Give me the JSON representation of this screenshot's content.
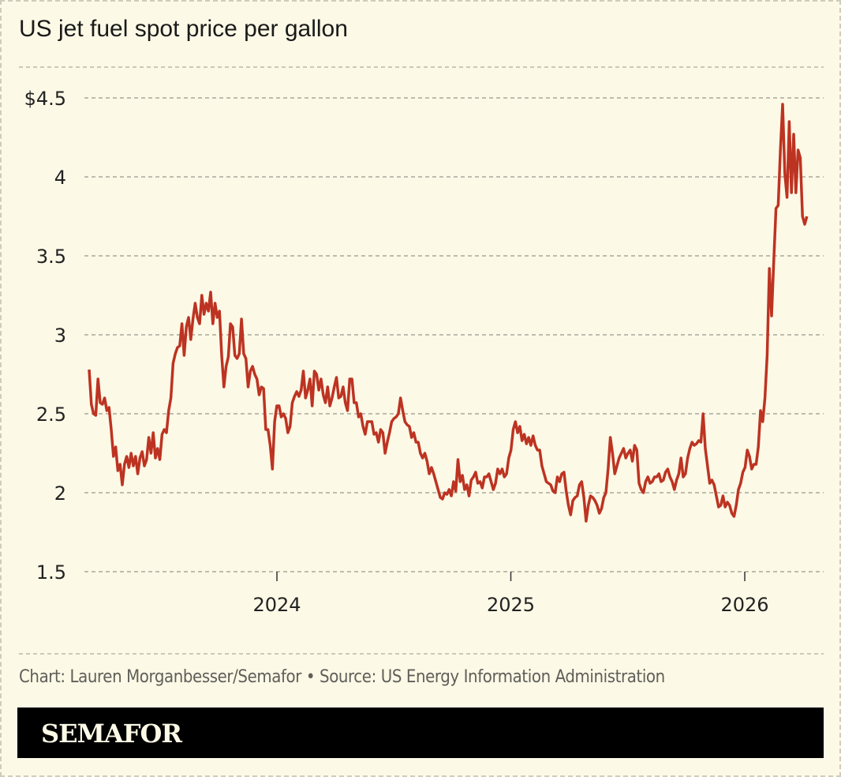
{
  "title": "US jet fuel spot price per gallon",
  "credit": "Chart: Lauren Morganbesser/Semafor • Source: US Energy Information Administration",
  "brand": "SEMAFOR",
  "colors": {
    "line": "#bd3322",
    "background": "#fcf9e6",
    "grid": "#aaa79c",
    "brand_bar": "#000000"
  },
  "chart_data": {
    "type": "line",
    "title": "US jet fuel spot price per gallon",
    "xlabel": "",
    "ylabel": "",
    "ylim": [
      1.5,
      4.5
    ],
    "y_ticks": [
      {
        "value": 4.5,
        "label": "$4.5"
      },
      {
        "value": 4,
        "label": "4"
      },
      {
        "value": 3.5,
        "label": "3.5"
      },
      {
        "value": 3,
        "label": "3"
      },
      {
        "value": 2.5,
        "label": "2.5"
      },
      {
        "value": 2,
        "label": "2"
      },
      {
        "value": 1.5,
        "label": "1.5"
      }
    ],
    "x_ticks": [
      {
        "value": "2024-01-01",
        "label": "2024"
      },
      {
        "value": "2025-01-01",
        "label": "2025"
      },
      {
        "value": "2026-01-01",
        "label": "2026"
      }
    ],
    "grid": "horizontal dashed",
    "legend": "none",
    "series": [
      {
        "start_date": "2023-03-14",
        "end_date": "2026-04-08",
        "values": [
          2.78,
          2.56,
          2.5,
          2.49,
          2.72,
          2.57,
          2.56,
          2.6,
          2.52,
          2.54,
          2.4,
          2.23,
          2.29,
          2.14,
          2.18,
          2.05,
          2.18,
          2.23,
          2.16,
          2.25,
          2.17,
          2.23,
          2.12,
          2.22,
          2.26,
          2.17,
          2.21,
          2.35,
          2.25,
          2.38,
          2.22,
          2.28,
          2.21,
          2.37,
          2.4,
          2.38,
          2.52,
          2.6,
          2.82,
          2.88,
          2.92,
          2.93,
          3.07,
          2.87,
          3.05,
          3.11,
          2.97,
          3.1,
          3.2,
          3.11,
          3.07,
          3.25,
          3.13,
          3.2,
          3.15,
          3.27,
          3.07,
          3.2,
          3.11,
          3.15,
          2.87,
          2.67,
          2.8,
          2.86,
          3.07,
          3.05,
          2.87,
          2.85,
          2.88,
          3.1,
          2.88,
          2.85,
          2.67,
          2.77,
          2.8,
          2.75,
          2.72,
          2.62,
          2.67,
          2.66,
          2.4,
          2.4,
          2.3,
          2.15,
          2.45,
          2.55,
          2.55,
          2.48,
          2.5,
          2.47,
          2.38,
          2.42,
          2.57,
          2.61,
          2.64,
          2.61,
          2.65,
          2.77,
          2.6,
          2.65,
          2.72,
          2.55,
          2.77,
          2.75,
          2.65,
          2.72,
          2.62,
          2.57,
          2.67,
          2.55,
          2.6,
          2.67,
          2.73,
          2.6,
          2.61,
          2.67,
          2.57,
          2.52,
          2.72,
          2.72,
          2.57,
          2.57,
          2.48,
          2.5,
          2.42,
          2.37,
          2.45,
          2.45,
          2.45,
          2.37,
          2.38,
          2.32,
          2.4,
          2.38,
          2.25,
          2.32,
          2.38,
          2.45,
          2.47,
          2.48,
          2.5,
          2.6,
          2.52,
          2.45,
          2.43,
          2.42,
          2.35,
          2.38,
          2.32,
          2.32,
          2.25,
          2.22,
          2.25,
          2.2,
          2.12,
          2.16,
          2.12,
          2.07,
          2.02,
          1.97,
          1.96,
          2.0,
          1.99,
          2.02,
          1.98,
          2.07,
          2.01,
          2.21,
          2.07,
          2.11,
          2.02,
          2.05,
          1.98,
          2.08,
          2.1,
          2.13,
          2.06,
          2.07,
          2.03,
          2.1,
          2.1,
          2.12,
          2.07,
          2.02,
          2.06,
          2.15,
          2.12,
          2.15,
          2.1,
          2.12,
          2.22,
          2.27,
          2.4,
          2.45,
          2.38,
          2.42,
          2.33,
          2.37,
          2.31,
          2.35,
          2.3,
          2.36,
          2.3,
          2.27,
          2.27,
          2.17,
          2.12,
          2.07,
          2.06,
          2.05,
          2.01,
          2.0,
          2.1,
          2.07,
          2.12,
          2.13,
          2.01,
          1.92,
          1.86,
          1.95,
          1.97,
          1.98,
          2.05,
          2.07,
          1.97,
          1.82,
          1.92,
          1.98,
          1.97,
          1.95,
          1.92,
          1.87,
          1.9,
          1.97,
          2.0,
          2.15,
          2.35,
          2.25,
          2.12,
          2.17,
          2.22,
          2.25,
          2.28,
          2.22,
          2.25,
          2.27,
          2.2,
          2.3,
          2.27,
          2.06,
          2.02,
          2.0,
          2.07,
          2.1,
          2.06,
          2.07,
          2.1,
          2.1,
          2.12,
          2.07,
          2.08,
          2.13,
          2.15,
          2.1,
          2.07,
          2.02,
          2.08,
          2.12,
          2.22,
          2.1,
          2.12,
          2.22,
          2.28,
          2.32,
          2.3,
          2.31,
          2.33,
          2.32,
          2.5,
          2.28,
          2.17,
          2.06,
          2.08,
          2.05,
          1.98,
          1.91,
          1.92,
          1.98,
          1.91,
          1.94,
          1.92,
          1.87,
          1.85,
          1.92,
          2.02,
          2.06,
          2.13,
          2.16,
          2.27,
          2.23,
          2.15,
          2.18,
          2.18,
          2.29,
          2.52,
          2.45,
          2.6,
          2.87,
          3.42,
          3.12,
          3.47,
          3.8,
          3.82,
          4.17,
          4.46,
          4.02,
          3.87,
          4.35,
          3.9,
          4.27,
          3.9,
          4.17,
          4.12,
          3.75,
          3.7,
          3.75
        ]
      }
    ]
  }
}
